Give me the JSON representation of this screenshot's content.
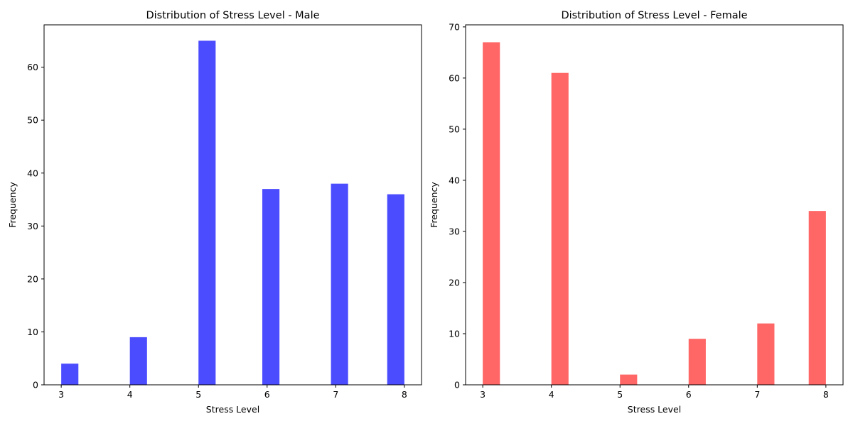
{
  "chart_data": [
    {
      "type": "bar",
      "title": "Distribution of Stress Level - Male",
      "xlabel": "Stress Level",
      "ylabel": "Frequency",
      "xlim": [
        2.75,
        8.25
      ],
      "ylim": [
        0,
        68
      ],
      "xticks": [
        3,
        4,
        5,
        6,
        7,
        8
      ],
      "yticks": [
        0,
        10,
        20,
        30,
        40,
        50,
        60
      ],
      "color": "#4c4cff",
      "bins": [
        {
          "x0": 3.0,
          "x1": 3.25,
          "value": 4
        },
        {
          "x0": 4.0,
          "x1": 4.25,
          "value": 9
        },
        {
          "x0": 5.0,
          "x1": 5.25,
          "value": 65
        },
        {
          "x0": 5.93,
          "x1": 6.18,
          "value": 37
        },
        {
          "x0": 6.93,
          "x1": 7.18,
          "value": 38
        },
        {
          "x0": 7.75,
          "x1": 8.0,
          "value": 36
        }
      ]
    },
    {
      "type": "bar",
      "title": "Distribution of Stress Level - Female",
      "xlabel": "Stress Level",
      "ylabel": "Frequency",
      "xlim": [
        2.75,
        8.25
      ],
      "ylim": [
        0,
        70.4
      ],
      "xticks": [
        3,
        4,
        5,
        6,
        7,
        8
      ],
      "yticks": [
        0,
        10,
        20,
        30,
        40,
        50,
        60,
        70
      ],
      "color": "#ff6666",
      "bins": [
        {
          "x0": 3.0,
          "x1": 3.25,
          "value": 67
        },
        {
          "x0": 4.0,
          "x1": 4.25,
          "value": 61
        },
        {
          "x0": 5.0,
          "x1": 5.25,
          "value": 2
        },
        {
          "x0": 6.0,
          "x1": 6.25,
          "value": 9
        },
        {
          "x0": 7.0,
          "x1": 7.25,
          "value": 12
        },
        {
          "x0": 7.75,
          "x1": 8.0,
          "value": 34
        }
      ]
    }
  ]
}
